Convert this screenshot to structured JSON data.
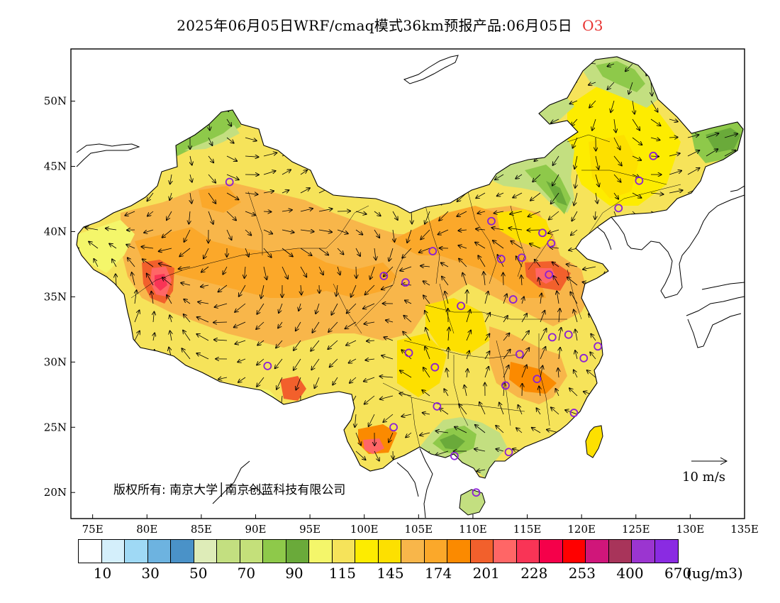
{
  "title": {
    "text": "2025年06月05日WRF/cmaq模式36km预报产品:06月05日",
    "pollutant": "O3"
  },
  "map": {
    "lon_range": [
      73,
      135
    ],
    "lat_range": [
      18,
      54
    ],
    "lon_ticks": [
      "75E",
      "80E",
      "85E",
      "90E",
      "95E",
      "100E",
      "105E",
      "110E",
      "115E",
      "120E",
      "125E",
      "130E",
      "135E"
    ],
    "lat_ticks": [
      "20N",
      "25N",
      "30N",
      "35N",
      "40N",
      "45N",
      "50N"
    ],
    "copyright": "版权所有: 南京大学│南京创蓝科技有限公司",
    "wind_scale_label": "10 m/s",
    "background_color": "#f5dc3a",
    "marker_color": "#8a1fd6",
    "stations": [
      {
        "lon": 87.6,
        "lat": 43.8
      },
      {
        "lon": 91.1,
        "lat": 29.7
      },
      {
        "lon": 101.8,
        "lat": 36.6
      },
      {
        "lon": 103.8,
        "lat": 36.1
      },
      {
        "lon": 106.3,
        "lat": 38.5
      },
      {
        "lon": 104.1,
        "lat": 30.7
      },
      {
        "lon": 106.5,
        "lat": 29.6
      },
      {
        "lon": 106.7,
        "lat": 26.6
      },
      {
        "lon": 102.7,
        "lat": 25.0
      },
      {
        "lon": 108.3,
        "lat": 22.8
      },
      {
        "lon": 110.3,
        "lat": 20.0
      },
      {
        "lon": 113.3,
        "lat": 23.1
      },
      {
        "lon": 108.9,
        "lat": 34.3
      },
      {
        "lon": 111.7,
        "lat": 40.8
      },
      {
        "lon": 112.6,
        "lat": 37.9
      },
      {
        "lon": 114.5,
        "lat": 38.0
      },
      {
        "lon": 116.4,
        "lat": 39.9
      },
      {
        "lon": 117.2,
        "lat": 39.1
      },
      {
        "lon": 117.0,
        "lat": 36.7
      },
      {
        "lon": 113.7,
        "lat": 34.8
      },
      {
        "lon": 114.3,
        "lat": 30.6
      },
      {
        "lon": 113.0,
        "lat": 28.2
      },
      {
        "lon": 115.9,
        "lat": 28.7
      },
      {
        "lon": 117.3,
        "lat": 31.9
      },
      {
        "lon": 118.8,
        "lat": 32.1
      },
      {
        "lon": 120.2,
        "lat": 30.3
      },
      {
        "lon": 121.5,
        "lat": 31.2
      },
      {
        "lon": 119.3,
        "lat": 26.1
      },
      {
        "lon": 123.4,
        "lat": 41.8
      },
      {
        "lon": 125.3,
        "lat": 43.9
      },
      {
        "lon": 126.6,
        "lat": 45.8
      }
    ]
  },
  "legend": {
    "colors": [
      "#ffffff",
      "#d4effb",
      "#9fd9f5",
      "#6db3e0",
      "#4a92c8",
      "#deecb8",
      "#c3df80",
      "#c4e07a",
      "#8ec94a",
      "#6aaa3a",
      "#f4f66a",
      "#f6e35a",
      "#fdec00",
      "#fde000",
      "#f8b64a",
      "#fba82a",
      "#fb8a00",
      "#f2602c",
      "#ff6666",
      "#f93456",
      "#f5004a",
      "#ff0000",
      "#d0167a",
      "#a8345a",
      "#9b35d0",
      "#8a2be2"
    ],
    "labels": [
      "10",
      "30",
      "50",
      "70",
      "90",
      "115",
      "145",
      "174",
      "201",
      "228",
      "253",
      "400",
      "670"
    ],
    "unit": "(ug/m3)"
  }
}
